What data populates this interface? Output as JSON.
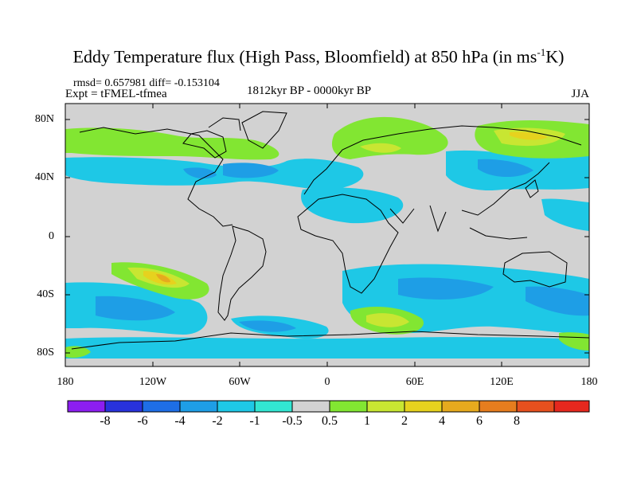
{
  "title_main": "Eddy Temperature flux (High Pass, Bloomfield) at 850 hPa (in ms",
  "title_sup": "-1",
  "title_end": "K)",
  "stats": "rmsd= 0.657981 diff= -0.153104",
  "experiment": "Expt = tFMEL-tfmea",
  "period": "1812kyr BP - 0000kyr BP",
  "season": "JJA",
  "lat_ticks": [
    "80N",
    "40N",
    "0",
    "40S",
    "80S"
  ],
  "lon_ticks": [
    "180",
    "120W",
    "60W",
    "0",
    "60E",
    "120E",
    "180"
  ],
  "colorbar": {
    "colors": [
      "#8c1ef0",
      "#2832dc",
      "#1e6ee6",
      "#1e9ee6",
      "#1ec8e6",
      "#32e6d2",
      "#d2d2d2",
      "#82e632",
      "#c8e632",
      "#e6d21e",
      "#e6aa1e",
      "#e67d1e",
      "#e6501e",
      "#e6281e"
    ],
    "labels": [
      "-8",
      "-6",
      "-4",
      "-2",
      "-1",
      "-0.5",
      "0.5",
      "1",
      "2",
      "4",
      "6",
      "8"
    ]
  }
}
